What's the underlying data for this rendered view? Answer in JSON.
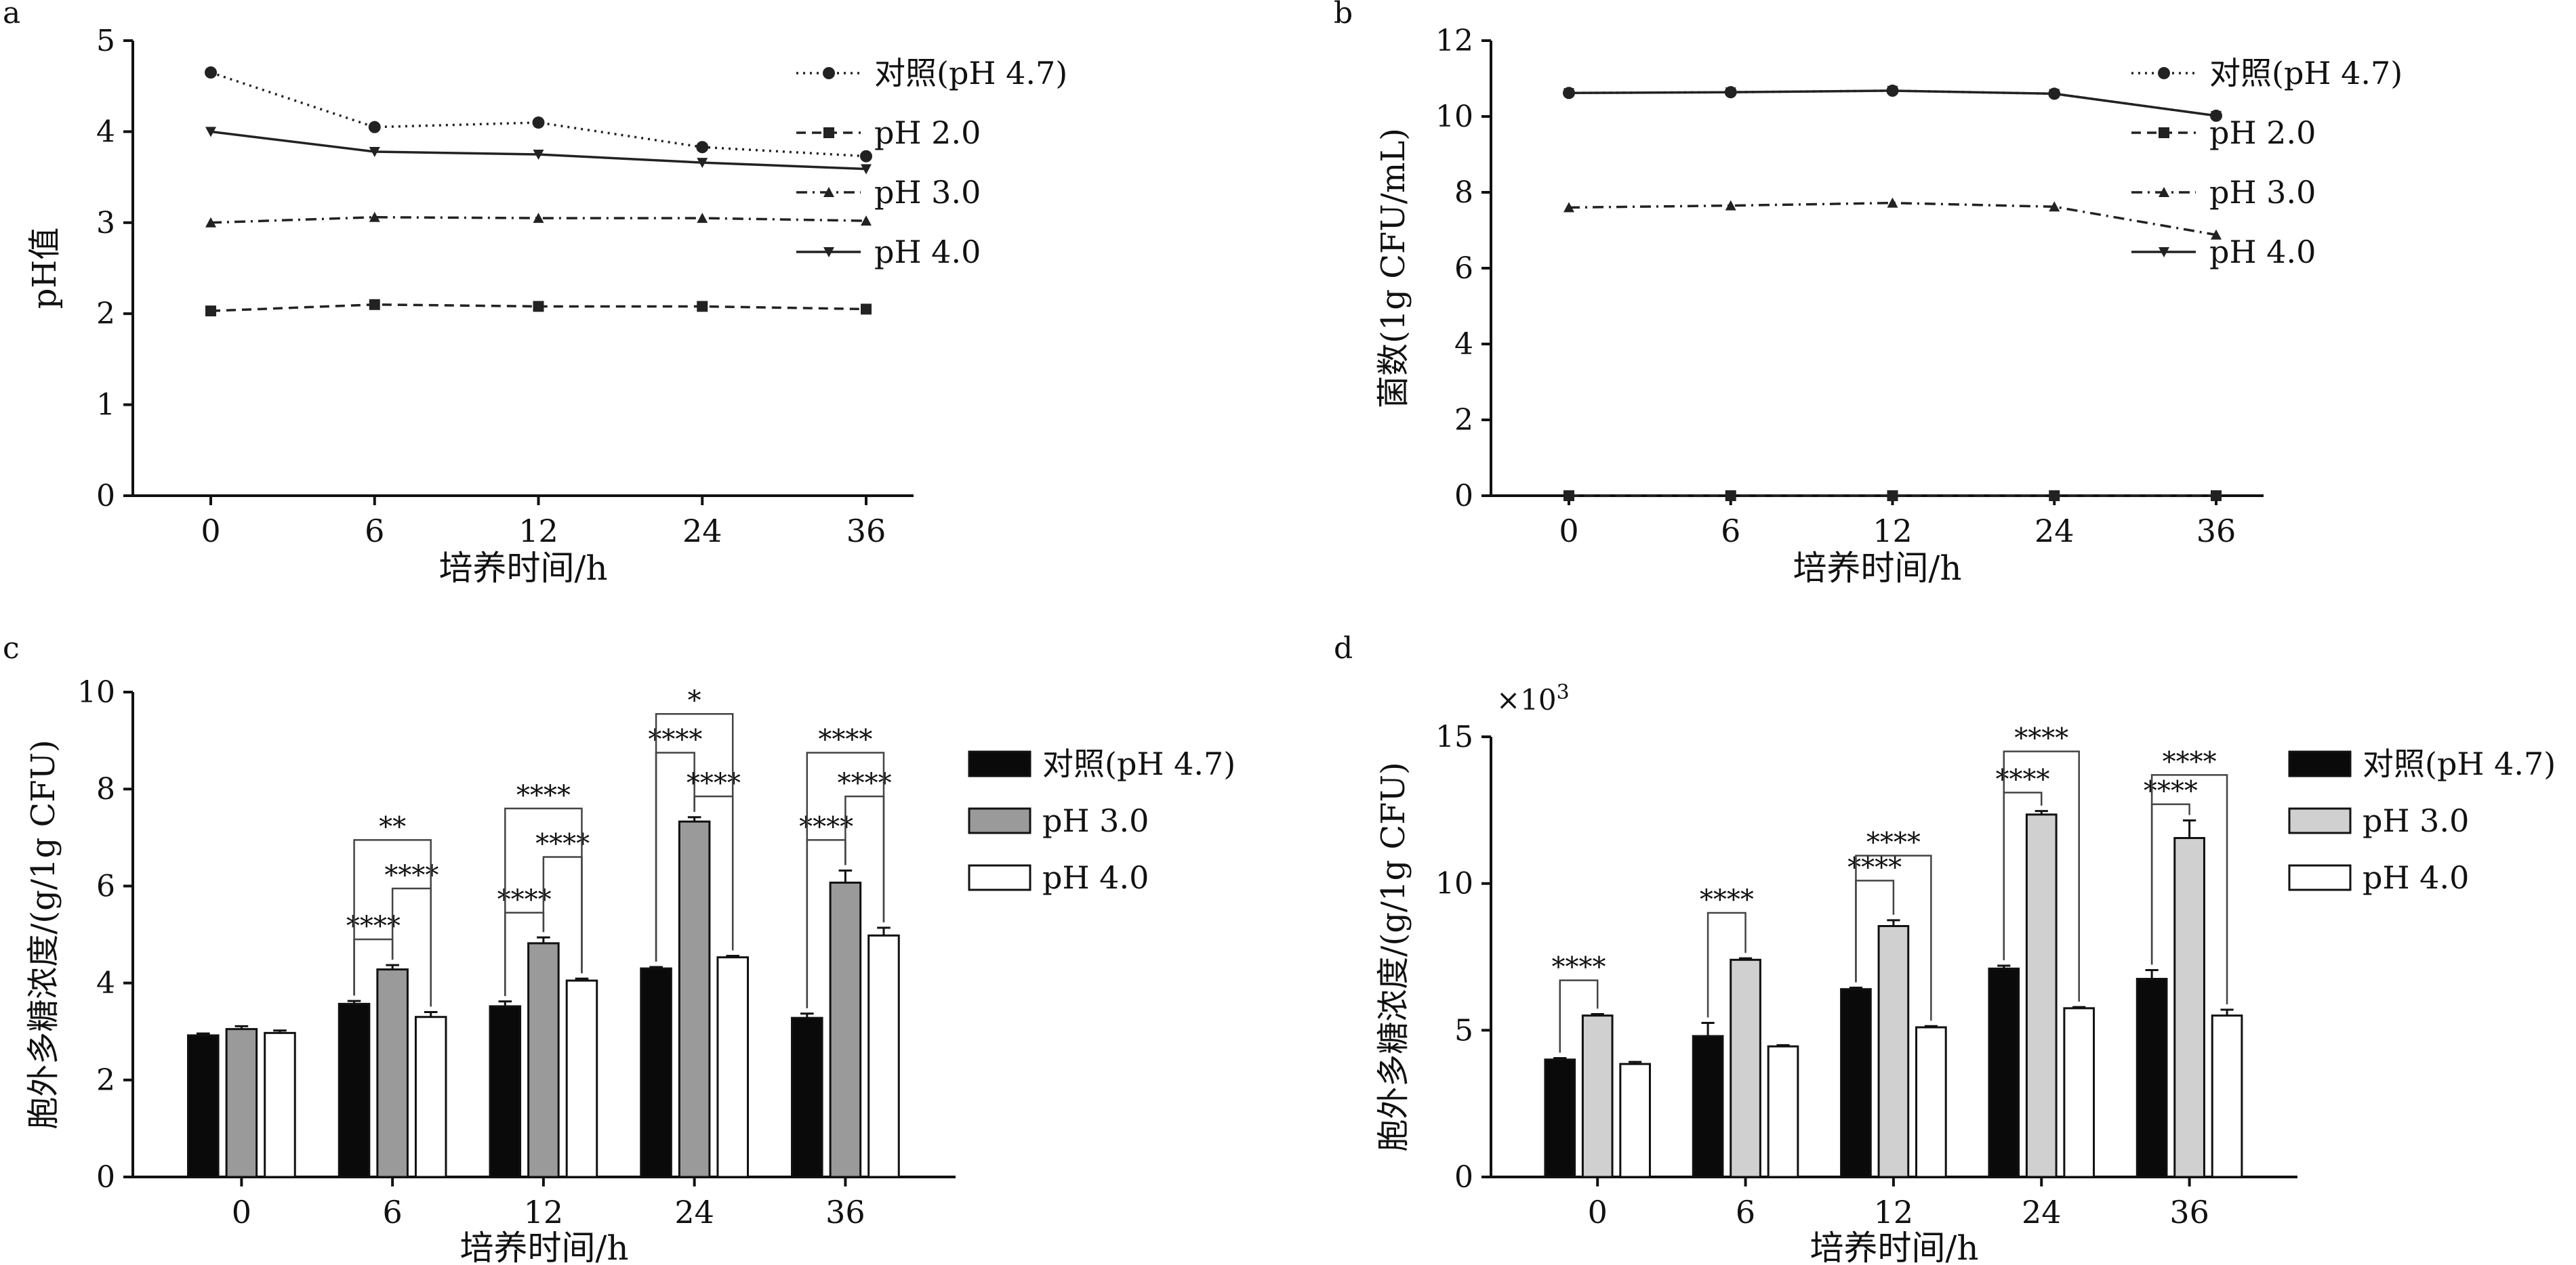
{
  "chart_data": [
    {
      "panel": "a",
      "type": "line",
      "title": "",
      "xlabel": "培养时间/h",
      "ylabel": "pH值",
      "categories": [
        "0",
        "6",
        "12",
        "24",
        "36"
      ],
      "ylim": [
        0,
        5
      ],
      "yticks": [
        "0",
        "1",
        "2",
        "3",
        "4",
        "5"
      ],
      "legend_position": "right",
      "series": [
        {
          "name": "对照(pH 4.7)",
          "values": [
            4.65,
            4.05,
            4.1,
            3.83,
            3.73
          ],
          "marker": "circle",
          "dash": "dotted"
        },
        {
          "name": "pH 2.0",
          "values": [
            2.03,
            2.1,
            2.08,
            2.08,
            2.05
          ],
          "marker": "square",
          "dash": "dashed"
        },
        {
          "name": "pH 3.0",
          "values": [
            3.0,
            3.06,
            3.05,
            3.05,
            3.02
          ],
          "marker": "triangle-up",
          "dash": "dashdot"
        },
        {
          "name": "pH 4.0",
          "values": [
            4.0,
            3.78,
            3.75,
            3.66,
            3.59
          ],
          "marker": "triangle-down",
          "dash": "solid"
        }
      ]
    },
    {
      "panel": "b",
      "type": "line",
      "title": "",
      "xlabel": "培养时间/h",
      "ylabel": "菌数(1g CFU/mL)",
      "categories": [
        "0",
        "6",
        "12",
        "24",
        "36"
      ],
      "ylim": [
        0,
        12
      ],
      "yticks": [
        "0",
        "2",
        "4",
        "6",
        "8",
        "10",
        "12"
      ],
      "legend_position": "right",
      "series": [
        {
          "name": "对照(pH 4.7)",
          "values": [
            10.62,
            10.64,
            10.68,
            10.6,
            10.02
          ],
          "marker": "circle",
          "dash": "dotted"
        },
        {
          "name": "pH 2.0",
          "values": [
            0,
            0,
            0,
            0,
            0
          ],
          "marker": "square",
          "dash": "dashed"
        },
        {
          "name": "pH 3.0",
          "values": [
            7.6,
            7.65,
            7.72,
            7.62,
            6.88
          ],
          "marker": "triangle-up",
          "dash": "dashdot"
        },
        {
          "name": "pH 4.0",
          "values": [
            10.62,
            10.64,
            10.68,
            10.6,
            10.02
          ],
          "marker": "triangle-down",
          "dash": "solid"
        }
      ]
    },
    {
      "panel": "c",
      "type": "bar",
      "title": "",
      "xlabel": "培养时间/h",
      "ylabel": "胞外多糖浓度/(g/1g CFU)",
      "categories": [
        "0",
        "6",
        "12",
        "24",
        "36"
      ],
      "ylim": [
        0,
        10
      ],
      "yticks": [
        "0",
        "2",
        "4",
        "6",
        "8",
        "10"
      ],
      "legend_position": "right",
      "series": [
        {
          "name": "对照(pH 4.7)",
          "values": [
            2.92,
            3.57,
            3.52,
            4.3,
            3.28
          ],
          "errors": [
            0.04,
            0.06,
            0.1,
            0.03,
            0.09
          ],
          "color": "#0a0a0a"
        },
        {
          "name": "pH 3.0",
          "values": [
            3.05,
            4.28,
            4.82,
            7.33,
            6.07
          ],
          "errors": [
            0.06,
            0.09,
            0.12,
            0.09,
            0.25
          ],
          "color": "#9a9a9a"
        },
        {
          "name": "pH 4.0",
          "values": [
            2.97,
            3.3,
            4.05,
            4.53,
            4.98
          ],
          "errors": [
            0.05,
            0.1,
            0.04,
            0.03,
            0.16
          ],
          "color": "#ffffff"
        }
      ],
      "significance": [
        {
          "cat": 1,
          "from": 0,
          "to": 1,
          "label": "****",
          "y": 4.9
        },
        {
          "cat": 1,
          "from": 1,
          "to": 2,
          "label": "****",
          "y": 5.95
        },
        {
          "cat": 1,
          "from": 0,
          "to": 2,
          "label": "**",
          "y": 6.95
        },
        {
          "cat": 2,
          "from": 0,
          "to": 1,
          "label": "****",
          "y": 5.45
        },
        {
          "cat": 2,
          "from": 1,
          "to": 2,
          "label": "****",
          "y": 6.6
        },
        {
          "cat": 2,
          "from": 0,
          "to": 2,
          "label": "****",
          "y": 7.6
        },
        {
          "cat": 3,
          "from": 0,
          "to": 1,
          "label": "****",
          "y": 8.75
        },
        {
          "cat": 3,
          "from": 1,
          "to": 2,
          "label": "****",
          "y": 7.85
        },
        {
          "cat": 3,
          "from": 0,
          "to": 2,
          "label": "*",
          "y": 9.55
        },
        {
          "cat": 4,
          "from": 0,
          "to": 1,
          "label": "****",
          "y": 6.95
        },
        {
          "cat": 4,
          "from": 1,
          "to": 2,
          "label": "****",
          "y": 7.85
        },
        {
          "cat": 4,
          "from": 0,
          "to": 2,
          "label": "****",
          "y": 8.75
        }
      ]
    },
    {
      "panel": "d",
      "type": "bar",
      "title": "",
      "xlabel": "培养时间/h",
      "ylabel": "胞外多糖浓度/(g/1g CFU)",
      "y_multiplier_label": "×10",
      "y_multiplier_exp": "3",
      "categories": [
        "0",
        "6",
        "12",
        "24",
        "36"
      ],
      "ylim": [
        0,
        15
      ],
      "yticks": [
        "0",
        "5",
        "10",
        "15"
      ],
      "legend_position": "right",
      "series": [
        {
          "name": "对照(pH 4.7)",
          "values": [
            4.0,
            4.8,
            6.4,
            7.1,
            6.75
          ],
          "errors": [
            0.05,
            0.45,
            0.05,
            0.1,
            0.3
          ],
          "color": "#0a0a0a"
        },
        {
          "name": "pH 3.0",
          "values": [
            5.5,
            7.4,
            8.55,
            12.35,
            11.55
          ],
          "errors": [
            0.05,
            0.05,
            0.2,
            0.12,
            0.6
          ],
          "color": "#d0d0d0"
        },
        {
          "name": "pH 4.0",
          "values": [
            3.85,
            4.45,
            5.1,
            5.75,
            5.5
          ],
          "errors": [
            0.07,
            0.04,
            0.04,
            0.04,
            0.2
          ],
          "color": "#ffffff"
        }
      ],
      "significance": [
        {
          "cat": 0,
          "from": 0,
          "to": 1,
          "label": "****",
          "y": 6.7
        },
        {
          "cat": 1,
          "from": 0,
          "to": 1,
          "label": "****",
          "y": 9.0
        },
        {
          "cat": 2,
          "from": 0,
          "to": 1,
          "label": "****",
          "y": 10.1
        },
        {
          "cat": 2,
          "from": 0,
          "to": 2,
          "label": "****",
          "y": 10.95
        },
        {
          "cat": 3,
          "from": 0,
          "to": 1,
          "label": "****",
          "y": 13.1
        },
        {
          "cat": 3,
          "from": 0,
          "to": 2,
          "label": "****",
          "y": 14.5
        },
        {
          "cat": 4,
          "from": 0,
          "to": 1,
          "label": "****",
          "y": 12.7
        },
        {
          "cat": 4,
          "from": 0,
          "to": 2,
          "label": "****",
          "y": 13.7
        }
      ]
    }
  ],
  "panel_letters": [
    "a",
    "b",
    "c",
    "d"
  ]
}
